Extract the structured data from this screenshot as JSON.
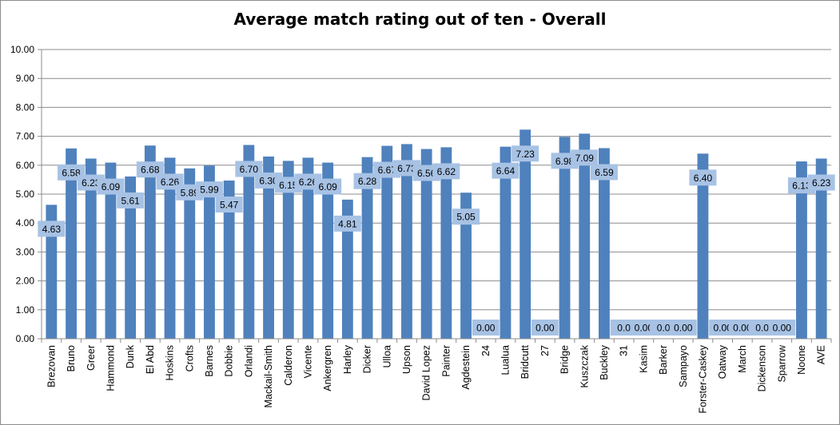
{
  "chart_data": {
    "type": "bar",
    "title": "Average match rating out of ten - Overall",
    "xlabel": "",
    "ylabel": "",
    "ylim": [
      0,
      10
    ],
    "yticks": [
      "0.00",
      "1.00",
      "2.00",
      "3.00",
      "4.00",
      "5.00",
      "6.00",
      "7.00",
      "8.00",
      "9.00",
      "10.00"
    ],
    "grid": true,
    "legend": "none",
    "bar_color": "#4f81bd",
    "label_bg": "#a7c2e4",
    "categories": [
      "Brezovan",
      "Bruno",
      "Greer",
      "Hammond",
      "Dunk",
      "El Abd",
      "Hoskins",
      "Crofts",
      "Barnes",
      "Dobbie",
      "Orlandi",
      "Mackail-Smith",
      "Calderon",
      "Vicente",
      "Ankergren",
      "Harley",
      "Dicker",
      "Ulloa",
      "Upson",
      "David Lopez",
      "Painter",
      "Agdestein",
      "24",
      "Lualua",
      "Bridcutt",
      "27",
      "Bridge",
      "Kuszczak",
      "Buckley",
      "31",
      "Kasim",
      "Barker",
      "Sampayo",
      "Forster-Caskey",
      "Oatway",
      "March",
      "Dickenson",
      "Sparrow",
      "Noone",
      "AVE"
    ],
    "values": [
      4.63,
      6.58,
      6.23,
      6.09,
      5.61,
      6.68,
      6.26,
      5.89,
      5.99,
      5.47,
      6.7,
      6.3,
      6.15,
      6.26,
      6.09,
      4.81,
      6.28,
      6.67,
      6.73,
      6.56,
      6.62,
      5.05,
      0.0,
      6.64,
      7.23,
      0.0,
      6.98,
      7.09,
      6.59,
      0.0,
      0.0,
      0.0,
      0.0,
      6.4,
      0.0,
      0.0,
      0.0,
      0.0,
      6.13,
      6.23
    ],
    "data_labels": [
      "4.63",
      "6.58",
      "6.23",
      "6.09",
      "5.61",
      "6.68",
      "6.26",
      "5.89",
      "5.99",
      "5.47",
      "6.70",
      "6.30",
      "6.15",
      "6.26",
      "6.09",
      "4.81",
      "6.28",
      "6.67",
      "6.73",
      "6.56",
      "6.62",
      "5.05",
      "0.00",
      "6.64",
      "7.23",
      "0.00",
      "6.98",
      "7.09",
      "6.59",
      "0.0",
      "0.00",
      "0.0",
      "0.00",
      "6.40",
      "0.00",
      "0.00",
      "0.0",
      "0.00",
      "6.13",
      "6.23"
    ]
  }
}
